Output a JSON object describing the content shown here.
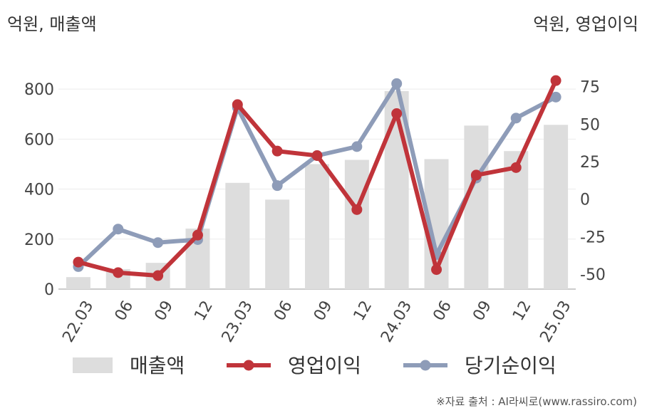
{
  "chart_data": {
    "type": "bar+line",
    "left_axis_unit": "억원, 매출액",
    "right_axis_unit": "억원, 영업이익",
    "categories": [
      "22.03",
      "06",
      "09",
      "12",
      "23.03",
      "06",
      "09",
      "12",
      "24.03",
      "06",
      "09",
      "12",
      "25.03"
    ],
    "bars": {
      "name": "매출액",
      "axis": "left",
      "color": "#dddddd",
      "values": [
        48,
        80,
        105,
        242,
        425,
        358,
        500,
        517,
        792,
        520,
        654,
        552,
        657
      ]
    },
    "series": [
      {
        "name": "영업이익",
        "axis": "right",
        "color": "#c0343a",
        "values": [
          -42,
          -49,
          -51,
          -24,
          63,
          32,
          29,
          -7,
          57,
          -47,
          16,
          21,
          79
        ]
      },
      {
        "name": "당기순이익",
        "axis": "right",
        "color": "#8e9cb8",
        "values": [
          -45,
          -20,
          -29,
          -27,
          61,
          9,
          29,
          35,
          77,
          -37,
          14,
          54,
          68
        ]
      }
    ],
    "left_ylim": [
      0,
      900
    ],
    "left_ticks": [
      0,
      200,
      400,
      600,
      800
    ],
    "right_ylim": [
      -60,
      90
    ],
    "right_ticks": [
      -50,
      -25,
      0,
      25,
      50,
      75
    ],
    "right_tick_labels": [
      "-50",
      "-25",
      "0",
      "25",
      "50",
      "75"
    ],
    "grid": true,
    "legend_position": "bottom"
  },
  "source_text": "※자료 출처 : AI라씨로(www.rassiro.com)"
}
